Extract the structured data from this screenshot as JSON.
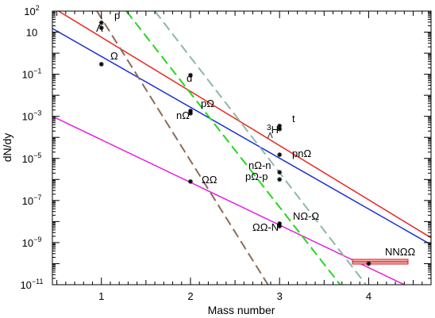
{
  "chart_data": {
    "type": "line",
    "xlabel": "Mass number",
    "ylabel": "dN/dy",
    "xlim": [
      0.45,
      4.7
    ],
    "ylim": [
      1e-11,
      100
    ],
    "yscale": "log",
    "grid": false,
    "x_ticks": [
      "1",
      "2",
      "3",
      "4"
    ],
    "y_ticks": [
      {
        "base": "10",
        "exp": "2"
      },
      {
        "base": "10",
        "exp": ""
      },
      {
        "base": "10",
        "exp": "−1"
      },
      {
        "base": "10",
        "exp": "−3"
      },
      {
        "base": "10",
        "exp": "−5"
      },
      {
        "base": "10",
        "exp": "−7"
      },
      {
        "base": "10",
        "exp": "−9"
      },
      {
        "base": "10",
        "exp": "−11"
      }
    ],
    "series": [
      {
        "color": "#e8261f",
        "dash": "solid",
        "x": [
          0.45,
          4.7
        ],
        "y": [
          150,
          1.7e-09
        ]
      },
      {
        "color": "#1c2fd1",
        "dash": "solid",
        "x": [
          0.45,
          4.7
        ],
        "y": [
          15,
          8e-10
        ]
      },
      {
        "color": "#e81ee0",
        "dash": "solid",
        "x": [
          0.45,
          4.4
        ],
        "y": [
          0.001,
          1e-11
        ]
      },
      {
        "color": "#22d81e",
        "dash": "dashed",
        "x": [
          1.28,
          3.68
        ],
        "y": [
          100,
          1e-11
        ]
      },
      {
        "color": "#8fb8a4",
        "dash": "dashed",
        "x": [
          1.6,
          3.97
        ],
        "y": [
          100,
          1e-11
        ]
      },
      {
        "color": "#8c6b5a",
        "dash": "dashed",
        "x": [
          0.95,
          2.87
        ],
        "y": [
          100,
          1e-11
        ]
      }
    ],
    "points": [
      {
        "label": "p",
        "x": 1.0,
        "y": 28
      },
      {
        "label": "Λ",
        "x": 1.0,
        "y": 16
      },
      {
        "label": "Ω",
        "x": 1.0,
        "y": 0.3
      },
      {
        "label": "d",
        "x": 2.0,
        "y": 0.09
      },
      {
        "label": "pΩ",
        "x": 2.0,
        "y": 0.0018
      },
      {
        "label": "nΩ",
        "x": 2.0,
        "y": 0.0014
      },
      {
        "label": "ΩΩ",
        "x": 2.0,
        "y": 8e-07
      },
      {
        "label": "t",
        "x": 3.0,
        "y": 0.00035
      },
      {
        "label": "³ΛH",
        "x": 3.0,
        "y": 0.00025
      },
      {
        "label": "pnΩ",
        "x": 3.0,
        "y": 1.5e-05
      },
      {
        "label": "nΩ-n",
        "x": 3.0,
        "y": 2.2e-06
      },
      {
        "label": "pΩ-p",
        "x": 3.0,
        "y": 1e-06
      },
      {
        "label": "NΩ-Ω",
        "x": 3.0,
        "y": 8e-09
      },
      {
        "label": "ΩΩ-N",
        "x": 3.0,
        "y": 6e-09
      },
      {
        "label": "NNΩΩ",
        "x": 4.0,
        "y": 1e-10
      }
    ],
    "annotations": {
      "p": "p",
      "lambda": "Λ",
      "omega": "Ω",
      "d": "d",
      "p_omega": "pΩ",
      "n_omega": "nΩ",
      "omega_omega": "ΩΩ",
      "t": "t",
      "hyper_h_mass": "3",
      "hyper_h_sub": "Λ",
      "hyper_h": "H",
      "pn_omega": "pnΩ",
      "n_omega_n": "nΩ-n",
      "p_omega_p": "pΩ-p",
      "n_omega_omega": "NΩ-Ω",
      "omega_omega_n": "ΩΩ-N",
      "nn_omega_omega": "NNΩΩ"
    }
  }
}
